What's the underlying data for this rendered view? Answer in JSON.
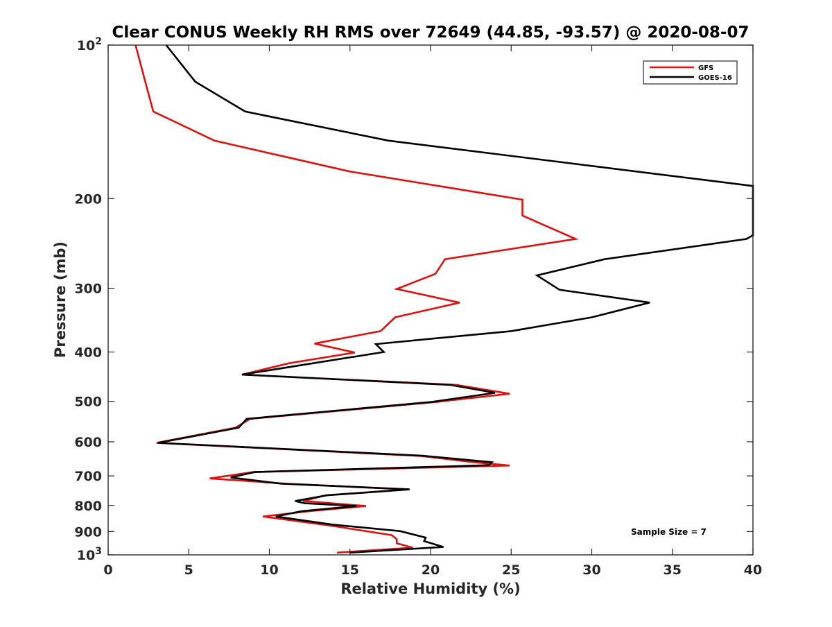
{
  "chart_data": {
    "type": "line",
    "title": "Clear CONUS Weekly RH RMS over 72649 (44.85, -93.57) @ 2020-08-07",
    "xlabel": "Relative Humidity (%)",
    "ylabel": "Pressure (mb)",
    "xlim": [
      0,
      40
    ],
    "ylim": [
      100,
      1000
    ],
    "y_scale": "log",
    "y_reversed": true,
    "x_ticks": [
      "0",
      "5",
      "10",
      "15",
      "20",
      "25",
      "30",
      "35",
      "40"
    ],
    "y_ticks": [
      {
        "value": 100,
        "label": "10",
        "sup": "2"
      },
      {
        "value": 200,
        "label": "200",
        "sup": ""
      },
      {
        "value": 300,
        "label": "300",
        "sup": ""
      },
      {
        "value": 400,
        "label": "400",
        "sup": ""
      },
      {
        "value": 500,
        "label": "500",
        "sup": ""
      },
      {
        "value": 600,
        "label": "600",
        "sup": ""
      },
      {
        "value": 700,
        "label": "700",
        "sup": ""
      },
      {
        "value": 800,
        "label": "800",
        "sup": ""
      },
      {
        "value": 900,
        "label": "900",
        "sup": ""
      },
      {
        "value": 1000,
        "label": "10",
        "sup": "3"
      }
    ],
    "grid": false,
    "legend_position": "top-right",
    "annotation": "Sample Size = 7",
    "series": [
      {
        "name": "GFS",
        "color": "#e0120f",
        "points": [
          [
            1.7,
            100
          ],
          [
            2.3,
            118
          ],
          [
            2.8,
            135
          ],
          [
            6.6,
            154
          ],
          [
            15.0,
            177
          ],
          [
            25.7,
            201
          ],
          [
            25.7,
            216
          ],
          [
            29.0,
            240
          ],
          [
            20.9,
            263
          ],
          [
            20.3,
            281
          ],
          [
            17.9,
            301
          ],
          [
            21.8,
            320
          ],
          [
            17.8,
            342
          ],
          [
            16.9,
            364
          ],
          [
            12.8,
            385
          ],
          [
            15.3,
            401
          ],
          [
            11.2,
            421
          ],
          [
            8.3,
            443
          ],
          [
            21.6,
            464
          ],
          [
            24.9,
            483
          ],
          [
            20.4,
            501
          ],
          [
            8.8,
            541
          ],
          [
            7.9,
            563
          ],
          [
            3.0,
            603
          ],
          [
            19.4,
            640
          ],
          [
            22.7,
            658
          ],
          [
            24.9,
            668
          ],
          [
            9.0,
            688
          ],
          [
            6.3,
            708
          ],
          [
            11.0,
            725
          ],
          [
            18.6,
            744
          ],
          [
            13.5,
            764
          ],
          [
            12.1,
            784
          ],
          [
            16.0,
            802
          ],
          [
            12.5,
            821
          ],
          [
            9.6,
            841
          ],
          [
            14.0,
            878
          ],
          [
            17.6,
            915
          ],
          [
            17.9,
            932
          ],
          [
            17.9,
            949
          ],
          [
            18.9,
            968
          ],
          [
            14.2,
            990
          ]
        ]
      },
      {
        "name": "GOES-16",
        "color": "#000000",
        "points": [
          [
            3.6,
            100
          ],
          [
            5.4,
            118
          ],
          [
            8.5,
            135
          ],
          [
            17.4,
            154
          ],
          [
            40.0,
            189
          ],
          [
            40.0,
            236
          ],
          [
            39.6,
            240
          ],
          [
            30.8,
            263
          ],
          [
            26.6,
            283
          ],
          [
            28.0,
            302
          ],
          [
            33.6,
            320
          ],
          [
            30.0,
            342
          ],
          [
            25.0,
            364
          ],
          [
            16.6,
            386
          ],
          [
            17.1,
            400
          ],
          [
            8.3,
            443
          ],
          [
            21.2,
            464
          ],
          [
            24.0,
            481
          ],
          [
            20.1,
            501
          ],
          [
            8.6,
            541
          ],
          [
            8.1,
            563
          ],
          [
            3.1,
            603
          ],
          [
            19.5,
            639
          ],
          [
            23.8,
            658
          ],
          [
            23.6,
            667
          ],
          [
            9.1,
            688
          ],
          [
            7.6,
            705
          ],
          [
            10.7,
            725
          ],
          [
            18.7,
            744
          ],
          [
            13.6,
            764
          ],
          [
            11.6,
            784
          ],
          [
            12.2,
            792
          ],
          [
            15.4,
            802
          ],
          [
            12.0,
            821
          ],
          [
            10.4,
            841
          ],
          [
            13.9,
            872
          ],
          [
            18.1,
            898
          ],
          [
            19.7,
            925
          ],
          [
            19.6,
            940
          ],
          [
            20.8,
            965
          ],
          [
            15.0,
            990
          ]
        ]
      }
    ]
  }
}
